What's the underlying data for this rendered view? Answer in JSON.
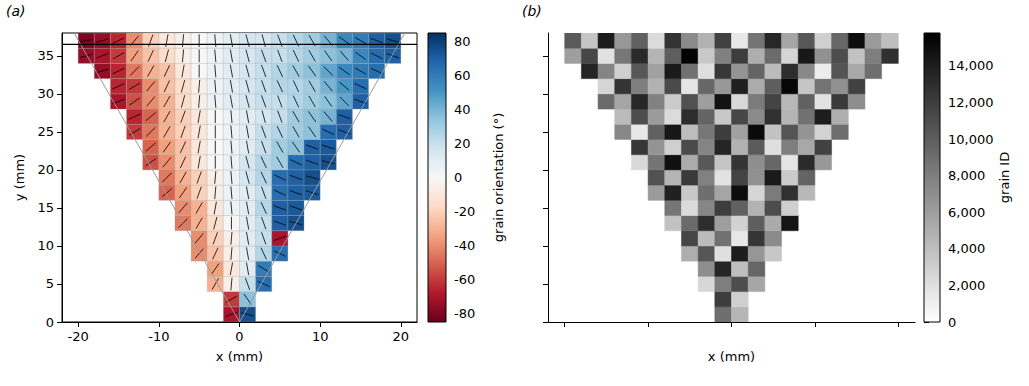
{
  "chart_data": [
    {
      "type": "heatmap",
      "panel_label": "(a)",
      "x_label": "x (mm)",
      "y_label": "y (mm)",
      "xlim": [
        -22,
        22
      ],
      "xticks": [
        -20,
        -10,
        0,
        10,
        20
      ],
      "ylim": [
        0,
        38
      ],
      "yticks": [
        0,
        5,
        10,
        15,
        20,
        25,
        30,
        35
      ],
      "color": "RdBu",
      "marker": "line",
      "colorbar": {
        "label": "grain orientation (°)",
        "range": [
          -85,
          85
        ],
        "ticks": [
          -80,
          -60,
          -40,
          -20,
          0,
          20,
          40,
          60,
          80
        ]
      },
      "hline_y": 36.5,
      "guide_lines": [
        [
          [
            -20.5,
            38
          ],
          [
            0,
            0
          ]
        ],
        [
          [
            20.5,
            38
          ],
          [
            0,
            0
          ]
        ]
      ],
      "cells": {
        "cell_size": [
          2,
          2
        ],
        "rows": [
          {
            "y": 0,
            "x0": -2,
            "values": [
              -70,
              75
            ]
          },
          {
            "y": 2,
            "x0": -2,
            "values": [
              -60,
              35
            ]
          },
          {
            "y": 4,
            "x0": -4,
            "values": [
              -30,
              -5,
              20,
              65
            ]
          },
          {
            "y": 6,
            "x0": -4,
            "values": [
              -35,
              -10,
              10,
              60
            ]
          },
          {
            "y": 8,
            "x0": -6,
            "values": [
              -40,
              -25,
              -5,
              10,
              25,
              65
            ]
          },
          {
            "y": 10,
            "x0": -6,
            "values": [
              -40,
              -20,
              -5,
              10,
              20,
              -70
            ]
          },
          {
            "y": 12,
            "x0": -8,
            "values": [
              -45,
              -30,
              -15,
              0,
              10,
              20,
              70,
              75
            ]
          },
          {
            "y": 14,
            "x0": -8,
            "values": [
              -40,
              -30,
              -10,
              5,
              10,
              25,
              70,
              72
            ]
          },
          {
            "y": 16,
            "x0": -10,
            "values": [
              -50,
              -35,
              -20,
              -5,
              5,
              10,
              20,
              65,
              70,
              72
            ]
          },
          {
            "y": 18,
            "x0": -10,
            "values": [
              -45,
              -30,
              -20,
              -5,
              5,
              15,
              25,
              65,
              70,
              75
            ]
          },
          {
            "y": 20,
            "x0": -12,
            "values": [
              -55,
              -40,
              -25,
              -10,
              0,
              5,
              15,
              25,
              30,
              65,
              70,
              75
            ]
          },
          {
            "y": 22,
            "x0": -12,
            "values": [
              -50,
              -35,
              -25,
              -10,
              0,
              5,
              10,
              20,
              30,
              35,
              70,
              72
            ]
          },
          {
            "y": 24,
            "x0": -14,
            "values": [
              -60,
              -45,
              -30,
              -20,
              -10,
              0,
              5,
              10,
              20,
              25,
              30,
              35,
              65,
              70
            ]
          },
          {
            "y": 26,
            "x0": -14,
            "values": [
              -65,
              -50,
              -30,
              -20,
              -10,
              0,
              5,
              10,
              15,
              20,
              30,
              35,
              40,
              70
            ]
          },
          {
            "y": 28,
            "x0": -16,
            "values": [
              -70,
              -55,
              -40,
              -30,
              -15,
              -5,
              5,
              10,
              15,
              20,
              20,
              25,
              30,
              35,
              45,
              70
            ]
          },
          {
            "y": 30,
            "x0": -16,
            "values": [
              -65,
              -60,
              -40,
              -25,
              -15,
              -5,
              5,
              10,
              15,
              20,
              25,
              25,
              30,
              40,
              50,
              65
            ]
          },
          {
            "y": 32,
            "x0": -18,
            "values": [
              -75,
              -65,
              -45,
              -30,
              -25,
              -10,
              0,
              5,
              10,
              15,
              20,
              25,
              30,
              35,
              45,
              55,
              60,
              65
            ]
          },
          {
            "y": 34,
            "x0": -20,
            "values": [
              -75,
              -70,
              -60,
              -35,
              -25,
              -15,
              -5,
              0,
              5,
              10,
              15,
              20,
              20,
              25,
              30,
              35,
              40,
              55,
              65,
              70
            ]
          },
          {
            "y": 36,
            "x0": -20,
            "values": [
              -80,
              -75,
              -65,
              -40,
              -20,
              -10,
              -5,
              0,
              5,
              10,
              15,
              15,
              20,
              25,
              30,
              40,
              55,
              60,
              70,
              75
            ]
          }
        ]
      }
    },
    {
      "type": "heatmap",
      "panel_label": "(b)",
      "x_label": "x (mm)",
      "xlim": [
        -22,
        22
      ],
      "xticks": [
        -20,
        -10,
        0,
        10,
        20
      ],
      "ylim": [
        0,
        38
      ],
      "yticks": [
        0,
        5,
        10,
        15,
        20,
        25,
        30,
        35
      ],
      "tick_labels": false,
      "color": "gray_r",
      "colorbar": {
        "label": "grain ID",
        "range": [
          0,
          15800
        ],
        "ticks": [
          0,
          2000,
          4000,
          6000,
          8000,
          10000,
          12000,
          14000
        ]
      },
      "cells": {
        "cell_size": [
          2,
          2
        ],
        "rows": [
          {
            "y": 0,
            "x0": -2,
            "values": [
              9000,
              4500
            ]
          },
          {
            "y": 2,
            "x0": -2,
            "values": [
              12000,
              3000
            ]
          },
          {
            "y": 4,
            "x0": -4,
            "values": [
              2500,
              8000,
              11000,
              5500
            ]
          },
          {
            "y": 6,
            "x0": -4,
            "values": [
              7000,
              13500,
              4000,
              9500
            ]
          },
          {
            "y": 8,
            "x0": -6,
            "values": [
              5000,
              10500,
              2000,
              14000,
              6500,
              3500
            ]
          },
          {
            "y": 10,
            "x0": -6,
            "values": [
              11500,
              4200,
              8800,
              1500,
              12500,
              7200
            ]
          },
          {
            "y": 12,
            "x0": -8,
            "values": [
              3800,
              9200,
              13000,
              6000,
              2800,
              10000,
              5200,
              14500
            ]
          },
          {
            "y": 14,
            "x0": -8,
            "values": [
              8500,
              2200,
              7500,
              12000,
              9800,
              4800,
              11000,
              3000
            ]
          },
          {
            "y": 16,
            "x0": -10,
            "values": [
              6200,
              13800,
              3400,
              9000,
              5600,
              15000,
              2600,
              8200,
              12800,
              4400
            ]
          },
          {
            "y": 18,
            "x0": -10,
            "values": [
              10800,
              4600,
              12200,
              7800,
              1800,
              11600,
              6800,
              14200,
              3200,
              9600
            ]
          },
          {
            "y": 20,
            "x0": -12,
            "values": [
              2400,
              8600,
              14800,
              5200,
              10400,
              3600,
              12600,
              7000,
              9400,
              1600,
              13200,
              6400
            ]
          },
          {
            "y": 22,
            "x0": -12,
            "values": [
              12400,
              6600,
              3000,
              11200,
              7600,
              13600,
              4800,
              10200,
              2000,
              8000,
              5400,
              11800
            ]
          },
          {
            "y": 24,
            "x0": -14,
            "values": [
              7400,
              1400,
              9800,
              14400,
              4000,
              8400,
              12000,
              5800,
              15200,
              3800,
              10600,
              6600,
              2800,
              9000
            ]
          },
          {
            "y": 26,
            "x0": -14,
            "values": [
              4200,
              11000,
              6200,
              2200,
              13000,
              9600,
              3400,
              11400,
              7200,
              12800,
              4600,
              8800,
              14000,
              5000
            ]
          },
          {
            "y": 28,
            "x0": -16,
            "values": [
              9200,
              5600,
              13400,
              7800,
              3200,
              10800,
              6000,
              14600,
              2400,
              8200,
              11600,
              4400,
              9800,
              1800,
              12200,
              7000
            ]
          },
          {
            "y": 30,
            "x0": -16,
            "values": [
              2600,
              12600,
              8000,
              4800,
              11200,
              1600,
              9400,
              6400,
              13800,
              5200,
              10000,
              15400,
              3600,
              8600,
              6800,
              11800
            ]
          },
          {
            "y": 32,
            "x0": -18,
            "values": [
              13600,
              7600,
              3000,
              10400,
              5800,
              14200,
              8800,
              2000,
              12400,
              6600,
              9600,
              4200,
              13000,
              7400,
              1200,
              10600,
              5400,
              9000
            ]
          },
          {
            "y": 34,
            "x0": -20,
            "values": [
              6000,
              11400,
              1800,
              8400,
              13200,
              4600,
              10000,
              15600,
              3400,
              7800,
              12000,
              5000,
              9200,
              2600,
              14400,
              6800,
              11000,
              3800,
              8000,
              12800
            ]
          },
          {
            "y": 36,
            "x0": -20,
            "values": [
              10200,
              3600,
              14000,
              6400,
              9800,
              2200,
              12600,
              7200,
              4800,
              11800,
              1400,
              8600,
              13400,
              5600,
              10400,
              3000,
              9400,
              15000,
              6200,
              4000
            ]
          }
        ]
      }
    }
  ]
}
